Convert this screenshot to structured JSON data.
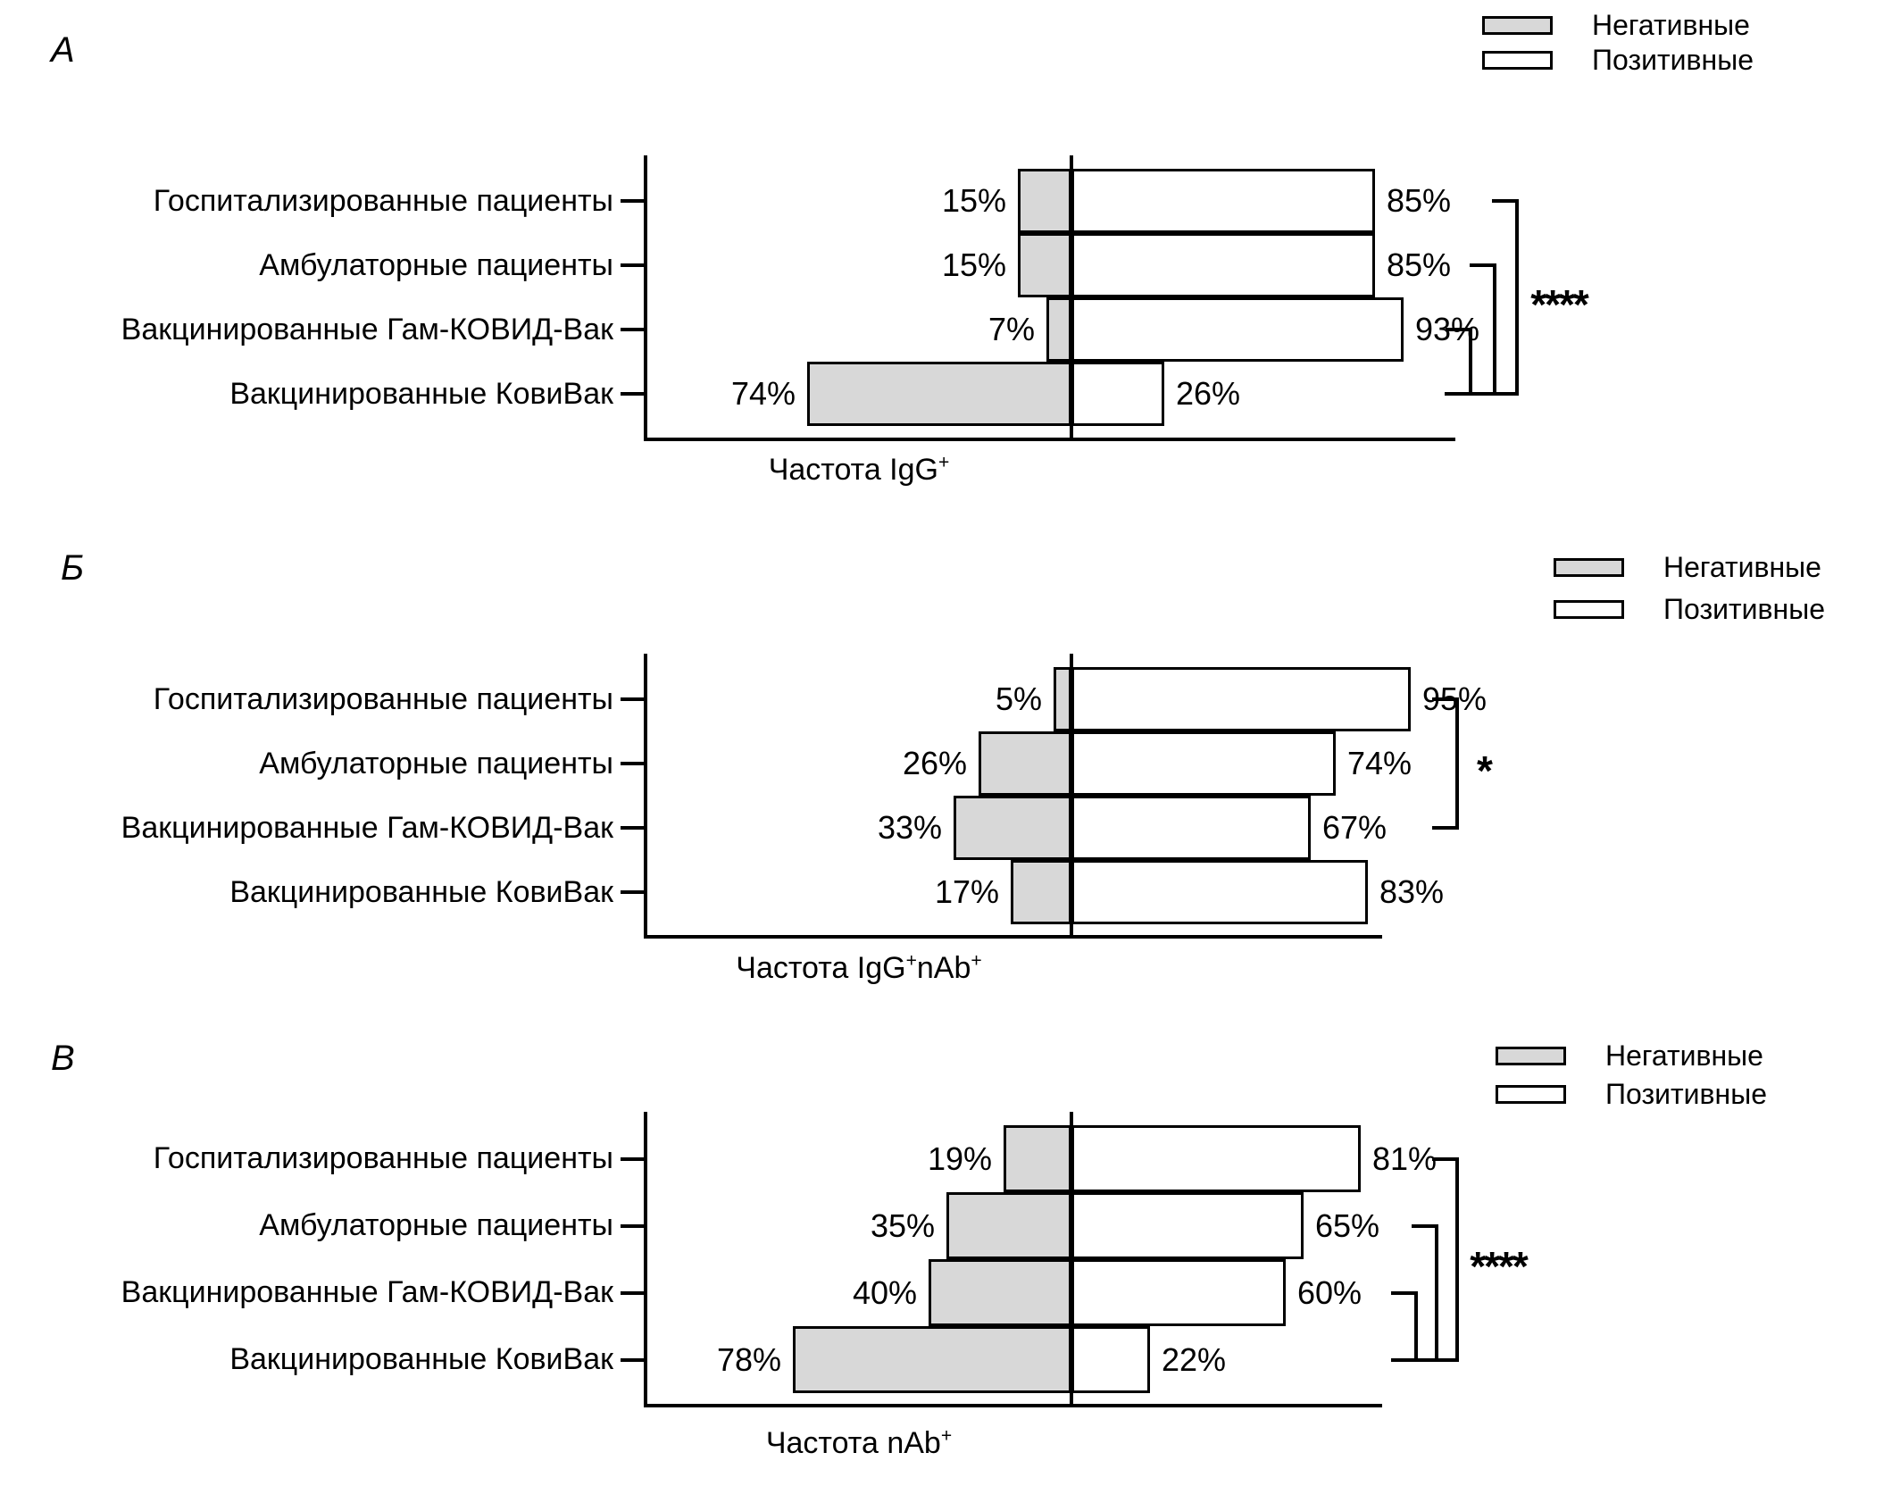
{
  "figure": {
    "background": "#ffffff"
  },
  "value_suffix": "%",
  "legend": {
    "negative": "Негативные",
    "positive": "Позитивные"
  },
  "colors": {
    "negative_fill": "#d8d8d8",
    "positive_fill": "#ffffff",
    "line": "#000000"
  },
  "chart_data": [
    {
      "type": "bar",
      "subtype": "diverging-horizontal-percent",
      "panel": "А",
      "categories": [
        "Госпитализированные пациенты",
        "Амбулаторные пациенты",
        "Вакцинированные Гам-КОВИД-Вак",
        "Вакцинированные КовиВак"
      ],
      "series": [
        {
          "name": "Негативные",
          "side": "left",
          "fill": "#d8d8d8",
          "values": [
            15,
            15,
            7,
            74
          ]
        },
        {
          "name": "Позитивные",
          "side": "right",
          "fill": "#ffffff",
          "values": [
            85,
            85,
            93,
            26
          ]
        }
      ],
      "xlabel": [
        {
          "text": "Частота IgG"
        },
        {
          "sup": "+"
        }
      ],
      "xlim": [
        0,
        100
      ],
      "grid": false,
      "legend_position": "top-right",
      "significance": {
        "label": "****",
        "comparisons": [
          [
            "Госпитализированные пациенты",
            "Вакцинированные КовиВак"
          ],
          [
            "Амбулаторные пациенты",
            "Вакцинированные КовиВак"
          ],
          [
            "Вакцинированные Гам-КОВИД-Вак",
            "Вакцинированные КовиВак"
          ]
        ]
      }
    },
    {
      "type": "bar",
      "subtype": "diverging-horizontal-percent",
      "panel": "Б",
      "categories": [
        "Госпитализированные пациенты",
        "Амбулаторные пациенты",
        "Вакцинированные Гам-КОВИД-Вак",
        "Вакцинированные КовиВак"
      ],
      "series": [
        {
          "name": "Негативные",
          "side": "left",
          "fill": "#d8d8d8",
          "values": [
            5,
            26,
            33,
            17
          ]
        },
        {
          "name": "Позитивные",
          "side": "right",
          "fill": "#ffffff",
          "values": [
            95,
            74,
            67,
            83
          ]
        }
      ],
      "xlabel": [
        {
          "text": "Частота IgG"
        },
        {
          "sup": "+"
        },
        {
          "text": "nAb"
        },
        {
          "sup": "+"
        }
      ],
      "xlim": [
        0,
        100
      ],
      "grid": false,
      "legend_position": "top-right",
      "significance": {
        "label": "*",
        "comparisons": [
          [
            "Госпитализированные пациенты",
            "Вакцинированные Гам-КОВИД-Вак"
          ]
        ]
      }
    },
    {
      "type": "bar",
      "subtype": "diverging-horizontal-percent",
      "panel": "В",
      "categories": [
        "Госпитализированные пациенты",
        "Амбулаторные пациенты",
        "Вакцинированные Гам-КОВИД-Вак",
        "Вакцинированные КовиВак"
      ],
      "series": [
        {
          "name": "Негативные",
          "side": "left",
          "fill": "#d8d8d8",
          "values": [
            19,
            35,
            40,
            78
          ]
        },
        {
          "name": "Позитивные",
          "side": "right",
          "fill": "#ffffff",
          "values": [
            81,
            65,
            60,
            22
          ]
        }
      ],
      "xlabel": [
        {
          "text": "Частота nAb"
        },
        {
          "sup": "+"
        }
      ],
      "xlim": [
        0,
        100
      ],
      "grid": false,
      "legend_position": "top-right",
      "significance": {
        "label": "****",
        "comparisons": [
          [
            "Госпитализированные пациенты",
            "Вакцинированные КовиВак"
          ],
          [
            "Амбулаторные пациенты",
            "Вакцинированные КовиВак"
          ],
          [
            "Вакцинированные Гам-КОВИД-Вак",
            "Вакцинированные КовиВак"
          ]
        ]
      }
    }
  ]
}
